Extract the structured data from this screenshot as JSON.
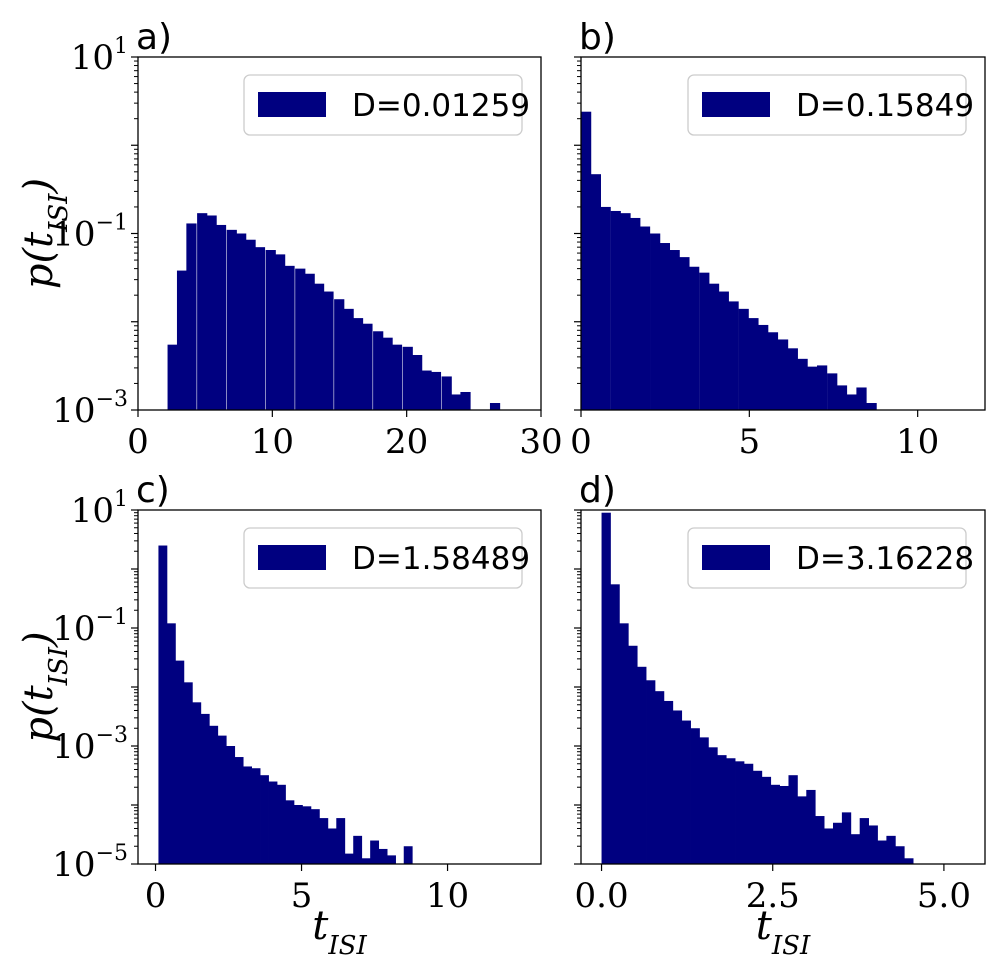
{
  "color": "#000080",
  "chart_data": [
    {
      "type": "bar",
      "panel": "a)",
      "legend": "D=0.01259",
      "legend_position": "top-right",
      "xlabel": "",
      "ylabel": "p(t_{ISI})",
      "xlim": [
        0,
        30
      ],
      "ylim_log10": [
        -3,
        1
      ],
      "yscale": "log",
      "xticks": [
        0,
        10,
        20,
        30
      ],
      "yticks_exp": [
        -3,
        -1,
        1
      ],
      "bin_width": 0.73,
      "bins": [
        [
          2.2,
          0.0055
        ],
        [
          2.9,
          0.038
        ],
        [
          3.6,
          0.13
        ],
        [
          4.4,
          0.17
        ],
        [
          5.1,
          0.16
        ],
        [
          5.8,
          0.125
        ],
        [
          6.6,
          0.11
        ],
        [
          7.3,
          0.1
        ],
        [
          8.0,
          0.085
        ],
        [
          8.7,
          0.07
        ],
        [
          9.5,
          0.065
        ],
        [
          10.2,
          0.058
        ],
        [
          10.9,
          0.043
        ],
        [
          11.7,
          0.04
        ],
        [
          12.4,
          0.035
        ],
        [
          13.1,
          0.027
        ],
        [
          13.8,
          0.022
        ],
        [
          14.6,
          0.018
        ],
        [
          15.3,
          0.014
        ],
        [
          16.0,
          0.011
        ],
        [
          16.7,
          0.0095
        ],
        [
          17.5,
          0.0078
        ],
        [
          18.2,
          0.0066
        ],
        [
          18.9,
          0.0055
        ],
        [
          19.7,
          0.0052
        ],
        [
          20.4,
          0.0042
        ],
        [
          21.1,
          0.0028
        ],
        [
          21.8,
          0.0027
        ],
        [
          22.6,
          0.0024
        ],
        [
          23.3,
          0.0015
        ],
        [
          24.0,
          0.0016
        ],
        [
          26.2,
          0.0012
        ]
      ]
    },
    {
      "type": "bar",
      "panel": "b)",
      "legend": "D=0.15849",
      "legend_position": "top-right",
      "xlabel": "",
      "ylabel": "",
      "xlim": [
        0,
        12
      ],
      "ylim_log10": [
        -3,
        1
      ],
      "yscale": "log",
      "xticks": [
        0,
        5,
        10
      ],
      "yticks_exp": [],
      "bin_width": 0.292,
      "bins": [
        [
          0.0,
          2.4
        ],
        [
          0.29,
          0.47
        ],
        [
          0.58,
          0.2
        ],
        [
          0.88,
          0.18
        ],
        [
          1.17,
          0.17
        ],
        [
          1.46,
          0.15
        ],
        [
          1.75,
          0.12
        ],
        [
          2.05,
          0.1
        ],
        [
          2.34,
          0.078
        ],
        [
          2.63,
          0.065
        ],
        [
          2.92,
          0.054
        ],
        [
          3.21,
          0.042
        ],
        [
          3.51,
          0.036
        ],
        [
          3.8,
          0.027
        ],
        [
          4.09,
          0.022
        ],
        [
          4.38,
          0.017
        ],
        [
          4.68,
          0.014
        ],
        [
          4.97,
          0.011
        ],
        [
          5.26,
          0.0092
        ],
        [
          5.55,
          0.0076
        ],
        [
          5.85,
          0.0063
        ],
        [
          6.14,
          0.005
        ],
        [
          6.43,
          0.0038
        ],
        [
          6.72,
          0.0031
        ],
        [
          7.01,
          0.0032
        ],
        [
          7.31,
          0.0026
        ],
        [
          7.6,
          0.0019
        ],
        [
          7.89,
          0.0015
        ],
        [
          8.18,
          0.0018
        ],
        [
          8.48,
          0.0012
        ]
      ]
    },
    {
      "type": "bar",
      "panel": "c)",
      "legend": "D=1.58489",
      "legend_position": "top-right",
      "xlabel": "t_{ISI}",
      "ylabel": "p(t_{ISI})",
      "xlim": [
        -0.6,
        13.2
      ],
      "ylim_log10": [
        -5,
        1
      ],
      "yscale": "log",
      "xticks": [
        0,
        5,
        10
      ],
      "yticks_exp": [
        -5,
        -3,
        -1,
        1
      ],
      "bin_width": 0.29,
      "bins": [
        [
          0.1,
          2.5
        ],
        [
          0.39,
          0.12
        ],
        [
          0.68,
          0.028
        ],
        [
          0.97,
          0.012
        ],
        [
          1.26,
          0.0055
        ],
        [
          1.55,
          0.0035
        ],
        [
          1.84,
          0.0022
        ],
        [
          2.13,
          0.0015
        ],
        [
          2.42,
          0.001
        ],
        [
          2.71,
          0.00065
        ],
        [
          3.0,
          0.00045
        ],
        [
          3.29,
          0.00042
        ],
        [
          3.58,
          0.00032
        ],
        [
          3.87,
          0.00025
        ],
        [
          4.16,
          0.00022
        ],
        [
          4.45,
          0.00012
        ],
        [
          4.74,
          0.0001
        ],
        [
          5.03,
          9.5e-05
        ],
        [
          5.32,
          8.5e-05
        ],
        [
          5.61,
          6e-05
        ],
        [
          5.9,
          4e-05
        ],
        [
          6.19,
          6e-05
        ],
        [
          6.48,
          1.5e-05
        ],
        [
          6.77,
          3e-05
        ],
        [
          7.06,
          1.25e-05
        ],
        [
          7.35,
          2.5e-05
        ],
        [
          7.64,
          1.8e-05
        ],
        [
          7.93,
          1.4e-05
        ],
        [
          8.5,
          2e-05
        ]
      ]
    },
    {
      "type": "bar",
      "panel": "d)",
      "legend": "D=3.16228",
      "legend_position": "top-right",
      "xlabel": "t_{ISI}",
      "ylabel": "",
      "xlim": [
        -0.3,
        5.6
      ],
      "ylim_log10": [
        -5,
        1
      ],
      "yscale": "log",
      "xticks": [
        0.0,
        2.5,
        5.0
      ],
      "xtick_labels": [
        "0.0",
        "2.5",
        "5.0"
      ],
      "yticks_exp": [],
      "bin_width": 0.13,
      "bins": [
        [
          0.0,
          9.0
        ],
        [
          0.13,
          0.55
        ],
        [
          0.26,
          0.12
        ],
        [
          0.39,
          0.05
        ],
        [
          0.52,
          0.022
        ],
        [
          0.65,
          0.013
        ],
        [
          0.78,
          0.0085
        ],
        [
          0.91,
          0.0058
        ],
        [
          1.04,
          0.004
        ],
        [
          1.17,
          0.0027
        ],
        [
          1.3,
          0.002
        ],
        [
          1.43,
          0.0014
        ],
        [
          1.56,
          0.00095
        ],
        [
          1.69,
          0.0007
        ],
        [
          1.82,
          0.00062
        ],
        [
          1.95,
          0.00055
        ],
        [
          2.08,
          0.0005
        ],
        [
          2.21,
          0.00038
        ],
        [
          2.34,
          0.0003
        ],
        [
          2.47,
          0.00022
        ],
        [
          2.6,
          0.00021
        ],
        [
          2.73,
          0.00032
        ],
        [
          2.86,
          0.00014
        ],
        [
          2.99,
          0.00018
        ],
        [
          3.12,
          6.5e-05
        ],
        [
          3.25,
          4e-05
        ],
        [
          3.38,
          5e-05
        ],
        [
          3.51,
          7.5e-05
        ],
        [
          3.64,
          3.2e-05
        ],
        [
          3.77,
          6e-05
        ],
        [
          3.9,
          4.5e-05
        ],
        [
          4.03,
          2.5e-05
        ],
        [
          4.16,
          3e-05
        ],
        [
          4.29,
          2e-05
        ],
        [
          4.42,
          1.25e-05
        ]
      ]
    }
  ]
}
